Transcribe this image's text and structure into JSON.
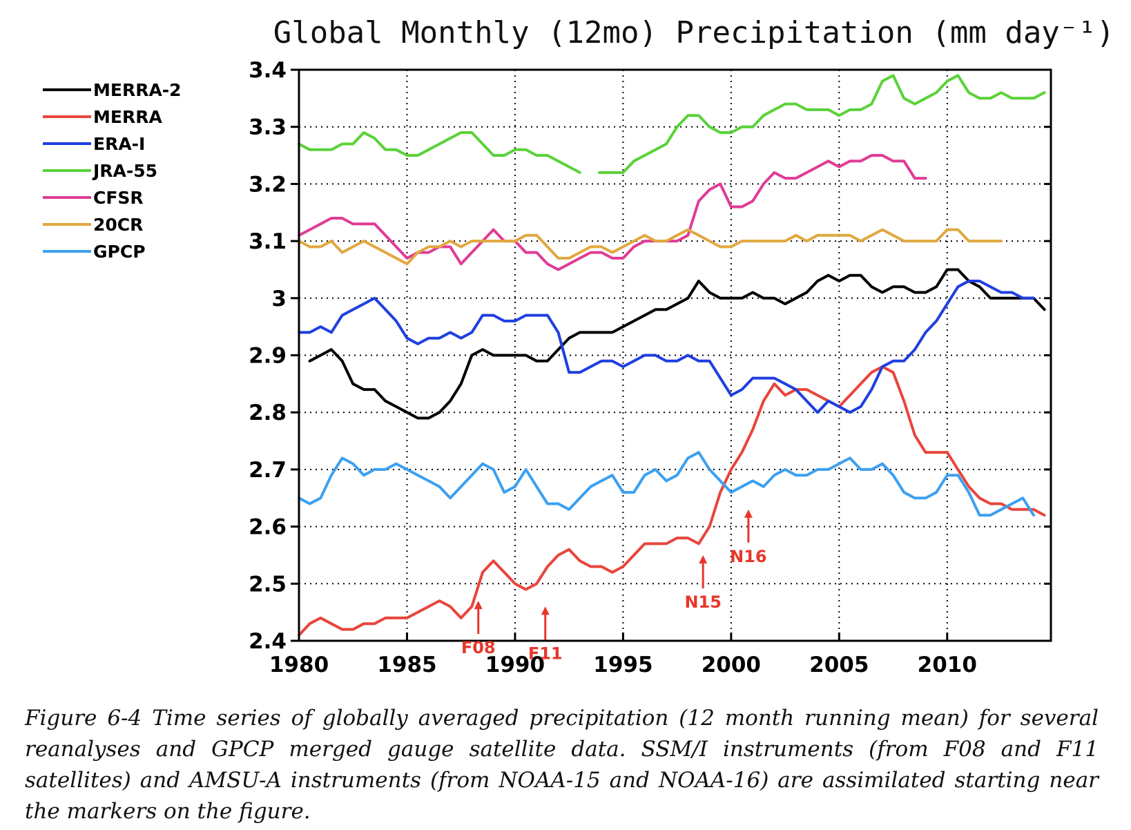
{
  "chart_data": {
    "type": "line",
    "title": "Global Monthly (12mo) Precipitation (mm day⁻¹)",
    "xlim": [
      1980,
      2014.8
    ],
    "ylim": [
      2.4,
      3.4
    ],
    "xticks": [
      "1980",
      "1985",
      "1990",
      "1995",
      "2000",
      "2005",
      "2010"
    ],
    "yticks": [
      "2.4",
      "2.5",
      "2.6",
      "2.7",
      "2.8",
      "2.9",
      "3",
      "3.1",
      "3.2",
      "3.3",
      "3.4"
    ],
    "grid": true,
    "legend_position": "top-left outside",
    "series": [
      {
        "name": "MERRA-2",
        "color": "#000000",
        "x": [
          1980.5,
          1981.0,
          1981.5,
          1982.0,
          1982.5,
          1983.0,
          1983.5,
          1984.0,
          1984.5,
          1985.0,
          1985.5,
          1986.0,
          1986.5,
          1987.0,
          1987.5,
          1988.0,
          1988.5,
          1989.0,
          1989.5,
          1990.0,
          1990.5,
          1991.0,
          1991.5,
          1992.0,
          1992.5,
          1993.0,
          1993.5,
          1994.0,
          1994.5,
          1995.0,
          1995.5,
          1996.0,
          1996.5,
          1997.0,
          1997.5,
          1998.0,
          1998.5,
          1999.0,
          1999.5,
          2000.0,
          2000.5,
          2001.0,
          2001.5,
          2002.0,
          2002.5,
          2003.0,
          2003.5,
          2004.0,
          2004.5,
          2005.0,
          2005.5,
          2006.0,
          2006.5,
          2007.0,
          2007.5,
          2008.0,
          2008.5,
          2009.0,
          2009.5,
          2010.0,
          2010.5,
          2011.0,
          2011.5,
          2012.0,
          2012.5,
          2013.0,
          2013.5,
          2014.0,
          2014.5
        ],
        "y": [
          2.89,
          2.9,
          2.91,
          2.89,
          2.85,
          2.84,
          2.84,
          2.82,
          2.81,
          2.8,
          2.79,
          2.79,
          2.8,
          2.82,
          2.85,
          2.9,
          2.91,
          2.9,
          2.9,
          2.9,
          2.9,
          2.89,
          2.89,
          2.91,
          2.93,
          2.94,
          2.94,
          2.94,
          2.94,
          2.95,
          2.96,
          2.97,
          2.98,
          2.98,
          2.99,
          3.0,
          3.03,
          3.01,
          3.0,
          3.0,
          3.0,
          3.01,
          3.0,
          3.0,
          2.99,
          3.0,
          3.01,
          3.03,
          3.04,
          3.03,
          3.04,
          3.04,
          3.02,
          3.01,
          3.02,
          3.02,
          3.01,
          3.01,
          3.02,
          3.05,
          3.05,
          3.03,
          3.02,
          3.0,
          3.0,
          3.0,
          3.0,
          3.0,
          2.98
        ]
      },
      {
        "name": "MERRA",
        "color": "#e8453c",
        "x": [
          1980.0,
          1980.5,
          1981.0,
          1981.5,
          1982.0,
          1982.5,
          1983.0,
          1983.5,
          1984.0,
          1984.5,
          1985.0,
          1985.5,
          1986.0,
          1986.5,
          1987.0,
          1987.5,
          1988.0,
          1988.5,
          1989.0,
          1989.5,
          1990.0,
          1990.5,
          1991.0,
          1991.5,
          1992.0,
          1992.5,
          1993.0,
          1993.5,
          1994.0,
          1994.5,
          1995.0,
          1995.5,
          1996.0,
          1996.5,
          1997.0,
          1997.5,
          1998.0,
          1998.5,
          1999.0,
          1999.5,
          2000.0,
          2000.5,
          2001.0,
          2001.5,
          2002.0,
          2002.5,
          2003.0,
          2003.5,
          2004.0,
          2004.5,
          2005.0,
          2005.5,
          2006.0,
          2006.5,
          2007.0,
          2007.5,
          2008.0,
          2008.5,
          2009.0,
          2009.5,
          2010.0,
          2010.5,
          2011.0,
          2011.5,
          2012.0,
          2012.5,
          2013.0,
          2013.5,
          2014.0,
          2014.5
        ],
        "y": [
          2.41,
          2.43,
          2.44,
          2.43,
          2.42,
          2.42,
          2.43,
          2.43,
          2.44,
          2.44,
          2.44,
          2.45,
          2.46,
          2.47,
          2.46,
          2.44,
          2.46,
          2.52,
          2.54,
          2.52,
          2.5,
          2.49,
          2.5,
          2.53,
          2.55,
          2.56,
          2.54,
          2.53,
          2.53,
          2.52,
          2.53,
          2.55,
          2.57,
          2.57,
          2.57,
          2.58,
          2.58,
          2.57,
          2.6,
          2.66,
          2.7,
          2.73,
          2.77,
          2.82,
          2.85,
          2.83,
          2.84,
          2.84,
          2.83,
          2.82,
          2.81,
          2.83,
          2.85,
          2.87,
          2.88,
          2.87,
          2.82,
          2.76,
          2.73,
          2.73,
          2.73,
          2.7,
          2.67,
          2.65,
          2.64,
          2.64,
          2.63,
          2.63,
          2.63,
          2.62
        ]
      },
      {
        "name": "ERA-I",
        "color": "#1f3fe0",
        "x": [
          1980.0,
          1980.5,
          1981.0,
          1981.5,
          1982.0,
          1982.5,
          1983.0,
          1983.5,
          1984.0,
          1984.5,
          1985.0,
          1985.5,
          1986.0,
          1986.5,
          1987.0,
          1987.5,
          1988.0,
          1988.5,
          1989.0,
          1989.5,
          1990.0,
          1990.5,
          1991.0,
          1991.5,
          1992.0,
          1992.5,
          1993.0,
          1993.5,
          1994.0,
          1994.5,
          1995.0,
          1995.5,
          1996.0,
          1996.5,
          1997.0,
          1997.5,
          1998.0,
          1998.5,
          1999.0,
          1999.5,
          2000.0,
          2000.5,
          2001.0,
          2001.5,
          2002.0,
          2002.5,
          2003.0,
          2003.5,
          2004.0,
          2004.5,
          2005.0,
          2005.5,
          2006.0,
          2006.5,
          2007.0,
          2007.5,
          2008.0,
          2008.5,
          2009.0,
          2009.5,
          2010.0,
          2010.5,
          2011.0,
          2011.5,
          2012.0,
          2012.5,
          2013.0,
          2013.5,
          2014.0
        ],
        "y": [
          2.94,
          2.94,
          2.95,
          2.94,
          2.97,
          2.98,
          2.99,
          3.0,
          2.98,
          2.96,
          2.93,
          2.92,
          2.93,
          2.93,
          2.94,
          2.93,
          2.94,
          2.97,
          2.97,
          2.96,
          2.96,
          2.97,
          2.97,
          2.97,
          2.94,
          2.87,
          2.87,
          2.88,
          2.89,
          2.89,
          2.88,
          2.89,
          2.9,
          2.9,
          2.89,
          2.89,
          2.9,
          2.89,
          2.89,
          2.86,
          2.83,
          2.84,
          2.86,
          2.86,
          2.86,
          2.85,
          2.84,
          2.82,
          2.8,
          2.82,
          2.81,
          2.8,
          2.81,
          2.84,
          2.88,
          2.89,
          2.89,
          2.91,
          2.94,
          2.96,
          2.99,
          3.02,
          3.03,
          3.03,
          3.02,
          3.01,
          3.01,
          3.0,
          3.0
        ]
      },
      {
        "name": "JRA-55",
        "color": "#5ad238",
        "x": [
          1980.0,
          1980.5,
          1981.0,
          1981.5,
          1982.0,
          1982.5,
          1983.0,
          1983.5,
          1984.0,
          1984.5,
          1985.0,
          1985.5,
          1986.0,
          1986.5,
          1987.0,
          1987.5,
          1988.0,
          1988.5,
          1989.0,
          1989.5,
          1990.0,
          1990.5,
          1991.0,
          1991.5,
          1992.0,
          1992.5,
          1993.0,
          null,
          1993.9,
          1994.5,
          1995.0,
          1995.5,
          1996.0,
          1996.5,
          1997.0,
          1997.5,
          1998.0,
          1998.5,
          1999.0,
          1999.5,
          2000.0,
          2000.5,
          2001.0,
          2001.5,
          2002.0,
          2002.5,
          2003.0,
          2003.5,
          2004.0,
          2004.5,
          2005.0,
          2005.5,
          2006.0,
          2006.5,
          2007.0,
          2007.5,
          2008.0,
          2008.5,
          2009.0,
          2009.5,
          2010.0,
          2010.5,
          2011.0,
          2011.5,
          2012.0,
          2012.5,
          2013.0,
          2013.5,
          2014.0,
          2014.5
        ],
        "y": [
          3.27,
          3.26,
          3.26,
          3.26,
          3.27,
          3.27,
          3.29,
          3.28,
          3.26,
          3.26,
          3.25,
          3.25,
          3.26,
          3.27,
          3.28,
          3.29,
          3.29,
          3.27,
          3.25,
          3.25,
          3.26,
          3.26,
          3.25,
          3.25,
          3.24,
          3.23,
          3.22,
          null,
          3.22,
          3.22,
          3.22,
          3.24,
          3.25,
          3.26,
          3.27,
          3.3,
          3.32,
          3.32,
          3.3,
          3.29,
          3.29,
          3.3,
          3.3,
          3.32,
          3.33,
          3.34,
          3.34,
          3.33,
          3.33,
          3.33,
          3.32,
          3.33,
          3.33,
          3.34,
          3.38,
          3.39,
          3.35,
          3.34,
          3.35,
          3.36,
          3.38,
          3.39,
          3.36,
          3.35,
          3.35,
          3.36,
          3.35,
          3.35,
          3.35,
          3.36
        ]
      },
      {
        "name": "CFSR",
        "color": "#e03c96",
        "x": [
          1980.0,
          1980.5,
          1981.0,
          1981.5,
          1982.0,
          1982.5,
          1983.0,
          1983.5,
          1984.0,
          1984.5,
          1985.0,
          1985.5,
          1986.0,
          1986.5,
          1987.0,
          1987.5,
          1988.0,
          1988.5,
          1989.0,
          1989.5,
          1990.0,
          1990.5,
          1991.0,
          1991.5,
          1992.0,
          1992.5,
          1993.0,
          1993.5,
          1994.0,
          1994.5,
          1995.0,
          1995.5,
          1996.0,
          1996.5,
          1997.0,
          1997.5,
          1998.0,
          1998.5,
          1999.0,
          1999.5,
          2000.0,
          2000.5,
          2001.0,
          2001.5,
          2002.0,
          2002.5,
          2003.0,
          2003.5,
          2004.0,
          2004.5,
          2005.0,
          2005.5,
          2006.0,
          2006.5,
          2007.0,
          2007.5,
          2008.0,
          2008.5,
          2009.0
        ],
        "y": [
          3.11,
          3.12,
          3.13,
          3.14,
          3.14,
          3.13,
          3.13,
          3.13,
          3.11,
          3.09,
          3.07,
          3.08,
          3.08,
          3.09,
          3.09,
          3.06,
          3.08,
          3.1,
          3.12,
          3.1,
          3.1,
          3.08,
          3.08,
          3.06,
          3.05,
          3.06,
          3.07,
          3.08,
          3.08,
          3.07,
          3.07,
          3.09,
          3.1,
          3.1,
          3.1,
          3.1,
          3.11,
          3.17,
          3.19,
          3.2,
          3.16,
          3.16,
          3.17,
          3.2,
          3.22,
          3.21,
          3.21,
          3.22,
          3.23,
          3.24,
          3.23,
          3.24,
          3.24,
          3.25,
          3.25,
          3.24,
          3.24,
          3.21,
          3.21
        ]
      },
      {
        "name": "20CR",
        "color": "#e0a840",
        "x": [
          1980.0,
          1980.5,
          1981.0,
          1981.5,
          1982.0,
          1982.5,
          1983.0,
          1983.5,
          1984.0,
          1984.5,
          1985.0,
          1985.5,
          1986.0,
          1986.5,
          1987.0,
          1987.5,
          1988.0,
          1988.5,
          1989.0,
          1989.5,
          1990.0,
          1990.5,
          1991.0,
          1991.5,
          1992.0,
          1992.5,
          1993.0,
          1993.5,
          1994.0,
          1994.5,
          1995.0,
          1995.5,
          1996.0,
          1996.5,
          1997.0,
          1997.5,
          1998.0,
          1998.5,
          1999.0,
          1999.5,
          2000.0,
          2000.5,
          2001.0,
          2001.5,
          2002.0,
          2002.5,
          2003.0,
          2003.5,
          2004.0,
          2004.5,
          2005.0,
          2005.5,
          2006.0,
          2006.5,
          2007.0,
          2007.5,
          2008.0,
          2008.5,
          2009.0,
          2009.5,
          2010.0,
          2010.5,
          2011.0,
          2011.5,
          2012.0,
          2012.5
        ],
        "y": [
          3.1,
          3.09,
          3.09,
          3.1,
          3.08,
          3.09,
          3.1,
          3.09,
          3.08,
          3.07,
          3.06,
          3.08,
          3.09,
          3.09,
          3.1,
          3.09,
          3.1,
          3.1,
          3.1,
          3.1,
          3.1,
          3.11,
          3.11,
          3.09,
          3.07,
          3.07,
          3.08,
          3.09,
          3.09,
          3.08,
          3.09,
          3.1,
          3.11,
          3.1,
          3.1,
          3.11,
          3.12,
          3.11,
          3.1,
          3.09,
          3.09,
          3.1,
          3.1,
          3.1,
          3.1,
          3.1,
          3.11,
          3.1,
          3.11,
          3.11,
          3.11,
          3.11,
          3.1,
          3.11,
          3.12,
          3.11,
          3.1,
          3.1,
          3.1,
          3.1,
          3.12,
          3.12,
          3.1,
          3.1,
          3.1,
          3.1
        ]
      },
      {
        "name": "GPCP",
        "color": "#3ca0f0",
        "x": [
          1980.0,
          1980.5,
          1981.0,
          1981.5,
          1982.0,
          1982.5,
          1983.0,
          1983.5,
          1984.0,
          1984.5,
          1985.0,
          1985.5,
          1986.0,
          1986.5,
          1987.0,
          1987.5,
          1988.0,
          1988.5,
          1989.0,
          1989.5,
          1990.0,
          1990.5,
          1991.0,
          1991.5,
          1992.0,
          1992.5,
          1993.0,
          1993.5,
          1994.0,
          1994.5,
          1995.0,
          1995.5,
          1996.0,
          1996.5,
          1997.0,
          1997.5,
          1998.0,
          1998.5,
          1999.0,
          1999.5,
          2000.0,
          2000.5,
          2001.0,
          2001.5,
          2002.0,
          2002.5,
          2003.0,
          2003.5,
          2004.0,
          2004.5,
          2005.0,
          2005.5,
          2006.0,
          2006.5,
          2007.0,
          2007.5,
          2008.0,
          2008.5,
          2009.0,
          2009.5,
          2010.0,
          2010.5,
          2011.0,
          2011.5,
          2012.0,
          2012.5,
          2013.0,
          2013.5,
          2014.0
        ],
        "y": [
          2.65,
          2.64,
          2.65,
          2.69,
          2.72,
          2.71,
          2.69,
          2.7,
          2.7,
          2.71,
          2.7,
          2.69,
          2.68,
          2.67,
          2.65,
          2.67,
          2.69,
          2.71,
          2.7,
          2.66,
          2.67,
          2.7,
          2.67,
          2.64,
          2.64,
          2.63,
          2.65,
          2.67,
          2.68,
          2.69,
          2.66,
          2.66,
          2.69,
          2.7,
          2.68,
          2.69,
          2.72,
          2.73,
          2.7,
          2.68,
          2.66,
          2.67,
          2.68,
          2.67,
          2.69,
          2.7,
          2.69,
          2.69,
          2.7,
          2.7,
          2.71,
          2.72,
          2.7,
          2.7,
          2.71,
          2.69,
          2.66,
          2.65,
          2.65,
          2.66,
          2.69,
          2.69,
          2.66,
          2.62,
          2.62,
          2.63,
          2.64,
          2.65,
          2.62
        ]
      }
    ],
    "annotations": [
      {
        "label": "F08",
        "x": 1988.3,
        "arrow_tip_y": 2.47
      },
      {
        "label": "F11",
        "x": 1991.4,
        "arrow_tip_y": 2.46
      },
      {
        "label": "N15",
        "x": 1998.7,
        "arrow_tip_y": 2.55
      },
      {
        "label": "N16",
        "x": 2000.8,
        "arrow_tip_y": 2.63
      }
    ]
  },
  "caption": "Figure 6-4  Time series of globally averaged precipitation (12 month running mean) for several reanalyses and GPCP merged gauge satellite data. SSM/I instruments (from F08 and F11 satellites) and AMSU-A instruments (from NOAA-15 and NOAA-16) are assimilated starting near the markers on the figure."
}
